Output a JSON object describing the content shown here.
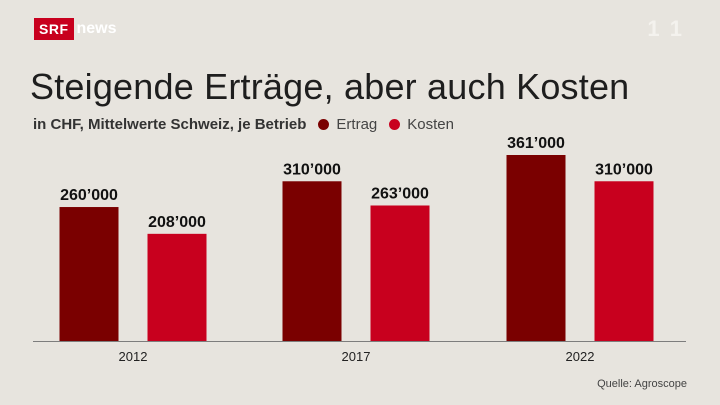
{
  "brand": {
    "logo_box": "SRF",
    "logo_news": "news",
    "watermark": "1 1"
  },
  "header": {
    "title": "Steigende Erträge, aber auch Kosten",
    "subtitle": "in CHF, Mittelwerte Schweiz, je Betrieb"
  },
  "legend": [
    {
      "label": "Ertrag",
      "color": "#7a0000"
    },
    {
      "label": "Kosten",
      "color": "#c8001e"
    }
  ],
  "source": "Quelle: Agroscope",
  "colors": {
    "background": "#e7e4de",
    "ertrag": "#7a0000",
    "kosten": "#c8001e"
  },
  "chart_data": {
    "type": "bar",
    "title": "Steigende Erträge, aber auch Kosten",
    "subtitle": "in CHF, Mittelwerte Schweiz, je Betrieb",
    "categories": [
      "2012",
      "2017",
      "2022"
    ],
    "series": [
      {
        "name": "Ertrag",
        "values": [
          260000,
          310000,
          361000
        ],
        "labels": [
          "260’000",
          "310’000",
          "361’000"
        ]
      },
      {
        "name": "Kosten",
        "values": [
          208000,
          263000,
          310000
        ],
        "labels": [
          "208’000",
          "263’000",
          "310’000"
        ]
      }
    ],
    "ylim": [
      0,
      361000
    ],
    "grid": false,
    "legend_position": "top-left"
  }
}
